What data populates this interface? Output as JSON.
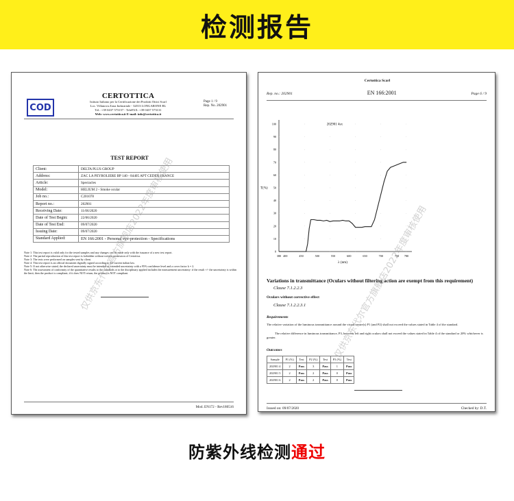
{
  "banner": {
    "title": "检测报告",
    "background": "#ffef1a"
  },
  "report1": {
    "logo_text": "COD",
    "org": "CERTOTTICA",
    "org_lines": [
      "Istituto Italiano per la Certificazione dei Prodotti Ottici Scarl",
      "Loc. Villanova Zona Industriale - 32013 LONGARONE BL",
      "Tel.: +39 0437 573157 - TeleFAX: +39 0437 573131",
      "Web:  www.certottica.it      E-mail: info@certottica.it"
    ],
    "page": "Page 1 / 9",
    "rep_no": "Rep. No. 202901",
    "title": "TEST REPORT",
    "rows": [
      [
        "Client:",
        "DELTA PLUS GROUP"
      ],
      [
        "Address:",
        "ZAC LA PEYROLIERE BP 140 - 84405 APT CEDEX FRANCE"
      ],
      [
        "Article:",
        "Spectacles"
      ],
      [
        "Model:",
        "HELIUM 2 - Smoke ocular"
      ],
      [
        "Job no.:",
        "C201078"
      ],
      [
        "Report no.:",
        "202901"
      ],
      [
        "Receiving Date:",
        "11/06/2020"
      ],
      [
        "Date of Test Begin:",
        "22/06/2020"
      ],
      [
        "Date of Test End:",
        "09/07/2020"
      ],
      [
        "Issuing Date:",
        "09/07/2020"
      ],
      [
        "Standard Applied:",
        "EN 166:2001 - Personal eye-protection - Specifications"
      ]
    ],
    "notes": [
      "Note 1: This test report is valid only for the tested samples and any changes can be made only with the issuance of a new test report.",
      "Note 2: The partial reproduction of this test report is forbidden without written permission of Certottica.",
      "Note 3: The tests were performed on samples sent by client.",
      "Note 4: This test report is an official document digitally signed according to the current italian law.",
      "Note 5: If not otherwise stated, the declared uncertainty must be intended as extended uncertainty with a 95% confidence level and a cover factor k = 2.",
      "Note 6: The assessment of conformity of the quantitative results to the standards or to the disciplinary applied includes the measurement uncertainty: if the result +/- the uncertainty is within the limit, then the product is compliant; if it does NOT return, the product is NOT compliant."
    ],
    "footer": "Mod. EN172 - Rev180516"
  },
  "report2": {
    "title": "Certottica Scarl",
    "rep_no": "Rep. no.: 202901",
    "standard": "EN 166:2001",
    "page": "Page  6 / 9",
    "heading": "Variations in transmittance (Oculars without filtering action are exempt from this requirement)",
    "clause1": "Clause 7.1.2.2.3",
    "subheading": "Oculars without corrective effect",
    "clause2": "Clause 7.1.2.2.3.1",
    "req_label": "Requirements",
    "req1": "The relative variation of the luminous transmittance around the visual centre(s) P1 (and P2) shall not exceed the values stated in Table 4 of the standard.",
    "req2": "The relative difference in luminous transmittance, P3, between left and right oculars shall not exceed the values stated in Table 4 of the standard or 20% whichever is greater.",
    "outcomes_label": "Outcomes",
    "table_header": [
      "Sample",
      "P1 (%)",
      "Test",
      "P2 (%)",
      "Test",
      "P3 (%)",
      "Test"
    ],
    "table_rows": [
      [
        "202901 4",
        "2",
        "Pass",
        "3",
        "Pass",
        "1",
        "Pass"
      ],
      [
        "202901 5",
        "2",
        "Pass",
        "2",
        "Pass",
        "0",
        "Pass"
      ],
      [
        "202901 6",
        "2",
        "Pass",
        "2",
        "Pass",
        "0",
        "Pass"
      ]
    ],
    "issued": "Issued on: 09/07/2020",
    "checked": "Checked by: D.T."
  },
  "chart_data": {
    "type": "line",
    "title": "202901 4sx",
    "xlabel": "λ (nm)",
    "ylabel": "T(%)",
    "xlim": [
      380,
      780
    ],
    "ylim": [
      0,
      100
    ],
    "xticks": [
      "380",
      "400",
      "450",
      "500",
      "550",
      "600",
      "650",
      "700",
      "750",
      "780"
    ],
    "yticks": [
      "0",
      "10",
      "20",
      "30",
      "40",
      "50",
      "60",
      "70",
      "80",
      "90",
      "100"
    ],
    "grid": true,
    "x": [
      380,
      400,
      450,
      465,
      470,
      475,
      480,
      490,
      500,
      510,
      520,
      530,
      540,
      550,
      560,
      570,
      580,
      590,
      600,
      610,
      620,
      630,
      640,
      650,
      660,
      670,
      680,
      690,
      700,
      710,
      720,
      730,
      740,
      750,
      760,
      770,
      780
    ],
    "y": [
      0,
      0,
      0,
      0,
      6,
      18,
      25,
      25,
      24.5,
      24.5,
      24,
      24.5,
      23.5,
      24,
      24,
      24,
      24.5,
      24,
      24,
      22,
      19,
      19,
      19,
      19.5,
      19.5,
      19.5,
      25,
      35,
      45,
      55,
      63,
      66,
      67,
      68,
      69,
      70,
      70
    ]
  },
  "watermark": {
    "left": "仅供京东代尔官方旗舰店2022年度审核使用",
    "right": "仅供京东代尔官方旗舰店2022年度审核使用"
  },
  "verdict": {
    "text": "防紫外线检测",
    "result": "通过",
    "result_color": "#ee0000"
  }
}
